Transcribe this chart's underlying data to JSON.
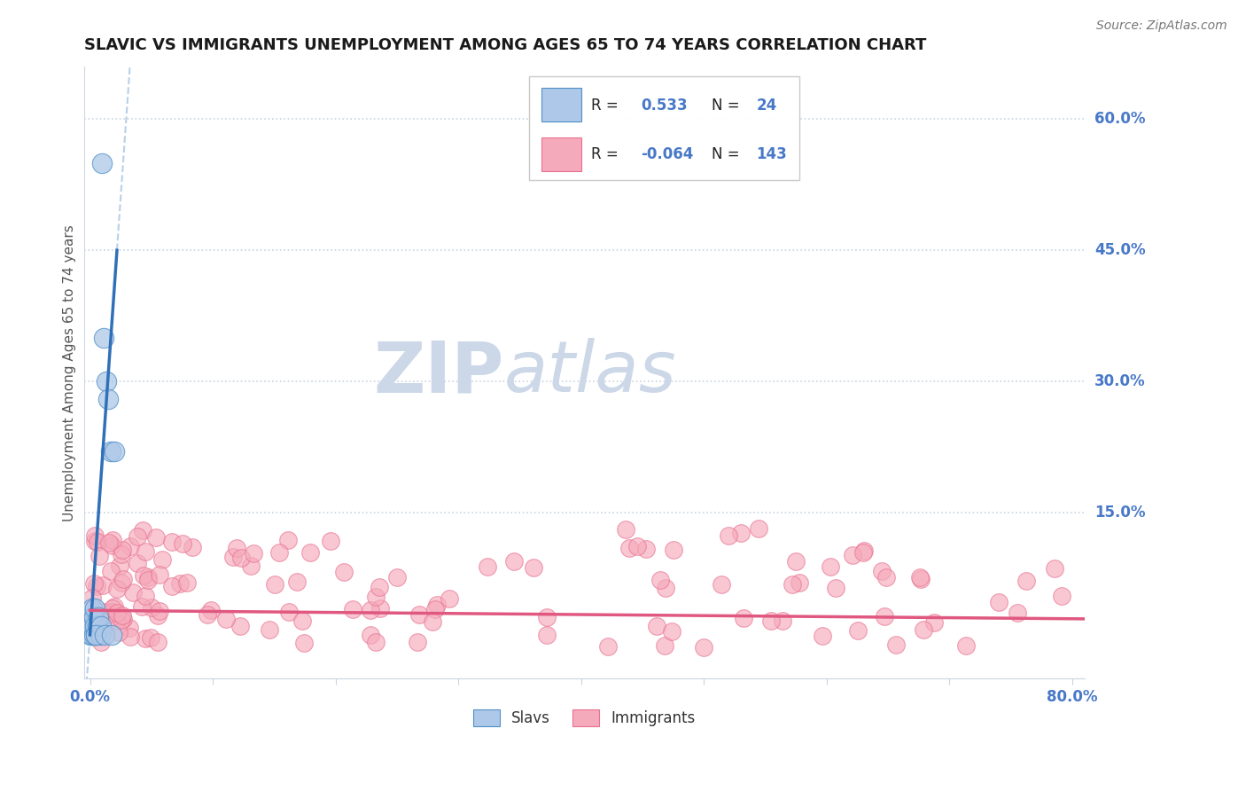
{
  "title": "SLAVIC VS IMMIGRANTS UNEMPLOYMENT AMONG AGES 65 TO 74 YEARS CORRELATION CHART",
  "source": "Source: ZipAtlas.com",
  "ylabel": "Unemployment Among Ages 65 to 74 years",
  "xlim": [
    -0.005,
    0.81
  ],
  "ylim": [
    -0.04,
    0.66
  ],
  "xtick_positions": [
    0.0,
    0.1,
    0.2,
    0.3,
    0.4,
    0.5,
    0.6,
    0.7,
    0.8
  ],
  "xticklabels": [
    "0.0%",
    "",
    "",
    "",
    "",
    "",
    "",
    "",
    "80.0%"
  ],
  "yticks_right": [
    0.15,
    0.3,
    0.45,
    0.6
  ],
  "ytick_right_labels": [
    "15.0%",
    "30.0%",
    "45.0%",
    "60.0%"
  ],
  "slavs_R": "0.533",
  "slavs_N": "24",
  "immigrants_R": "-0.064",
  "immigrants_N": "143",
  "slav_color": "#adc8e8",
  "immigrant_color": "#f5aabb",
  "slav_edge_color": "#5090c8",
  "immigrant_edge_color": "#e87090",
  "slav_line_color": "#3070b8",
  "immigrant_line_color": "#e05880",
  "trend_dash_color": "#b8d0e8",
  "background_color": "#ffffff",
  "watermark_zip": "ZIP",
  "watermark_atlas": "atlas",
  "watermark_color": "#ccd8e8",
  "legend_label_slavs": "Slavs",
  "legend_label_immigrants": "Immigrants",
  "title_fontsize": 13,
  "source_fontsize": 10,
  "ylabel_fontsize": 11,
  "grid_color": "#c8d4e0",
  "right_label_color": "#4878c8",
  "xlabel_color": "#4878c8"
}
